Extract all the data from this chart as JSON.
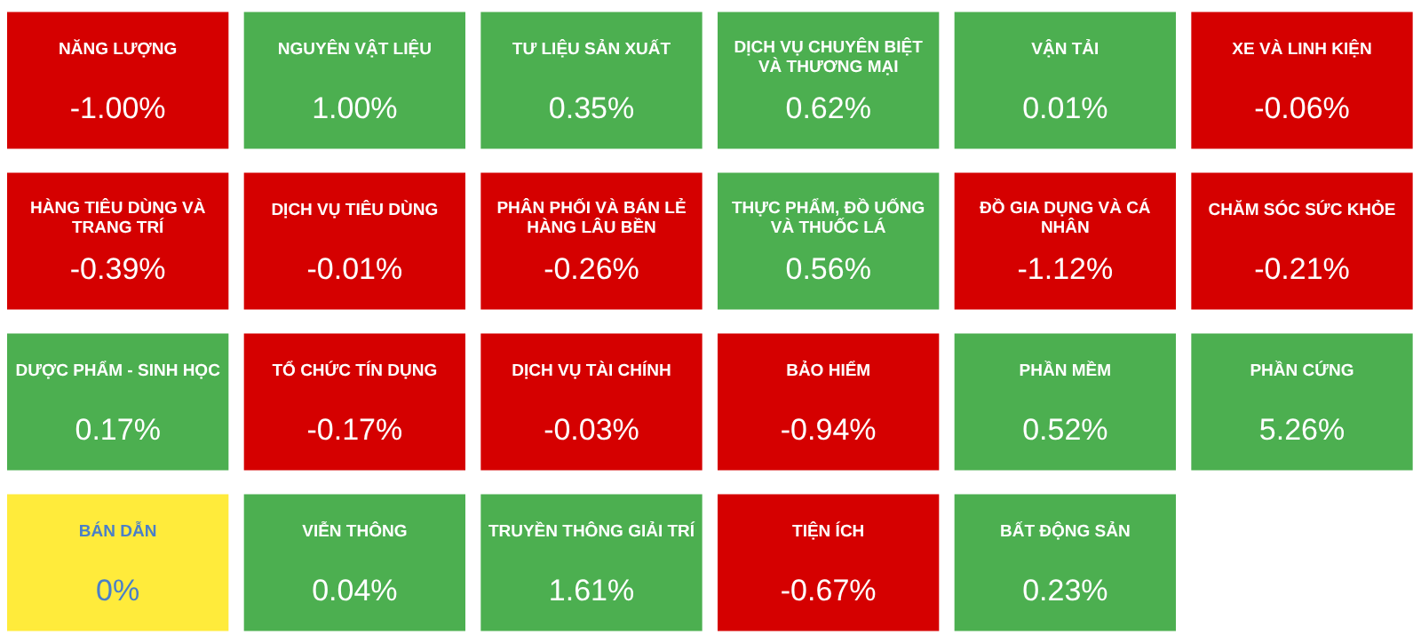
{
  "chart_data": {
    "type": "other",
    "categories": [
      "NĂNG LƯỢNG",
      "NGUYÊN VẬT LIỆU",
      "TƯ LIỆU SẢN XUẤT",
      "DỊCH VỤ CHUYÊN BIỆT VÀ THƯƠNG MẠI",
      "VẬN TẢI",
      "XE VÀ LINH KIỆN",
      "HÀNG TIÊU DÙNG VÀ TRANG TRÍ",
      "DỊCH VỤ TIÊU DÙNG",
      "PHÂN PHỐI VÀ BÁN LẺ HÀNG LÂU BỀN",
      "THỰC PHẨM, ĐỒ UỐNG VÀ THUỐC LÁ",
      "ĐỒ GIA DỤNG VÀ CÁ NHÂN",
      "CHĂM SÓC SỨC KHỎE",
      "DƯỢC PHẨM - SINH HỌC",
      "TỔ CHỨC TÍN DỤNG",
      "DỊCH VỤ TÀI CHÍNH",
      "BẢO HIỂM",
      "PHẦN MỀM",
      "PHẦN CỨNG",
      "BÁN DẪN",
      "VIỄN THÔNG",
      "TRUYỀN THÔNG GIẢI TRÍ",
      "TIỆN ÍCH",
      "BẤT ĐỘNG SẢN"
    ],
    "values": [
      -1.0,
      1.0,
      0.35,
      0.62,
      0.01,
      -0.06,
      -0.39,
      -0.01,
      -0.26,
      0.56,
      -1.12,
      -0.21,
      0.17,
      -0.17,
      -0.03,
      -0.94,
      0.52,
      5.26,
      0,
      0.04,
      1.61,
      -0.67,
      0.23
    ],
    "value_labels": [
      "-1.00%",
      "1.00%",
      "0.35%",
      "0.62%",
      "0.01%",
      "-0.06%",
      "-0.39%",
      "-0.01%",
      "-0.26%",
      "0.56%",
      "-1.12%",
      "-0.21%",
      "0.17%",
      "-0.17%",
      "-0.03%",
      "-0.94%",
      "0.52%",
      "5.26%",
      "0%",
      "0.04%",
      "1.61%",
      "-0.67%",
      "0.23%"
    ],
    "colors": [
      "#d50000",
      "#4caf50",
      "#4caf50",
      "#4caf50",
      "#4caf50",
      "#d50000",
      "#d50000",
      "#d50000",
      "#d50000",
      "#4caf50",
      "#d50000",
      "#d50000",
      "#4caf50",
      "#d50000",
      "#d50000",
      "#d50000",
      "#4caf50",
      "#4caf50",
      "#ffeb3b",
      "#4caf50",
      "#4caf50",
      "#d50000",
      "#4caf50"
    ]
  }
}
